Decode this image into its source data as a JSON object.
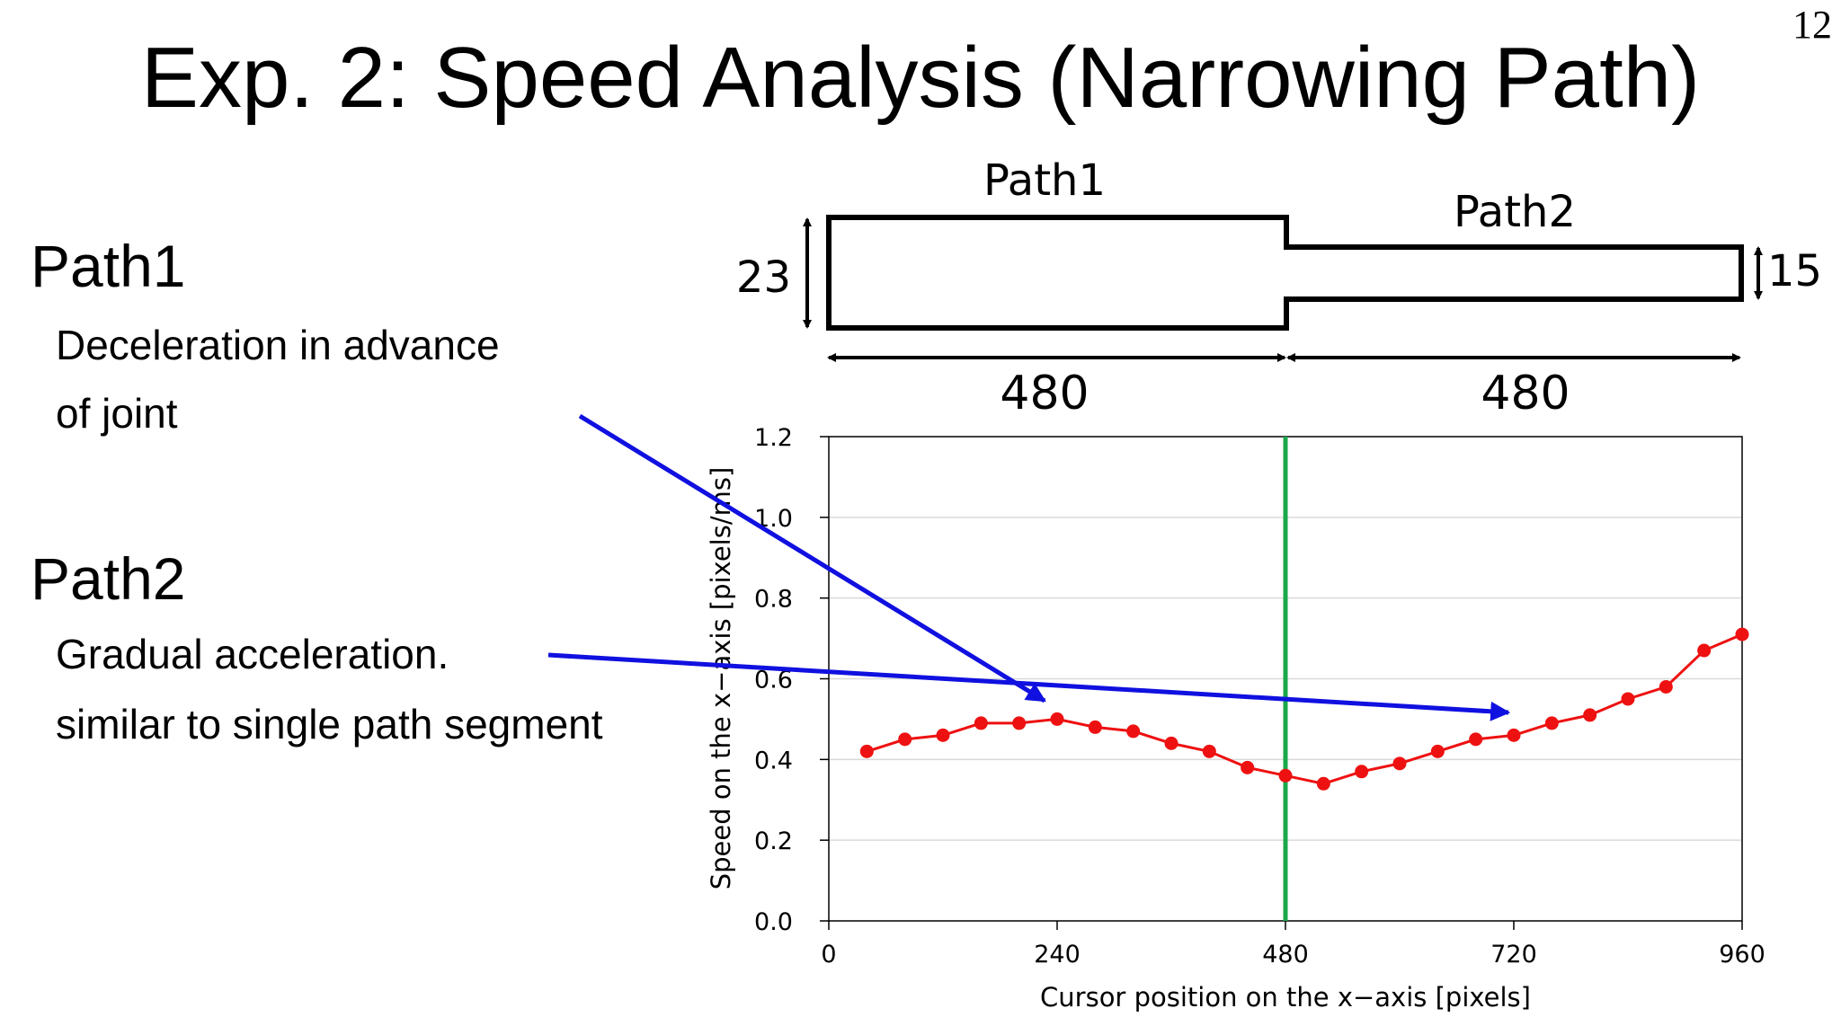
{
  "slide": {
    "number": "12",
    "title": "Exp. 2: Speed Analysis (Narrowing Path)"
  },
  "left_text": {
    "path1": {
      "heading": "Path1",
      "lines": [
        "Deceleration in advance",
        "of joint"
      ]
    },
    "path2": {
      "heading": "Path2",
      "lines": [
        "Gradual acceleration.",
        "similar to single path segment"
      ]
    }
  },
  "path_diagram": {
    "path1_label": "Path1",
    "path2_label": "Path2",
    "path1_width": "23",
    "path2_width": "15",
    "path1_length": "480",
    "path2_length": "480"
  },
  "annotations": {
    "arrow_color": "#1010e0"
  },
  "chart_data": {
    "type": "line",
    "xlabel": "Cursor position on the x−axis [pixels]",
    "ylabel": "Speed on the x−axis [pixels/ms]",
    "xlim": [
      0,
      960
    ],
    "ylim": [
      0,
      1.2
    ],
    "x_ticks": [
      0,
      240,
      480,
      720,
      960
    ],
    "y_ticks": [
      "0.0",
      "0.2",
      "0.4",
      "0.6",
      "0.8",
      "1.0",
      "1.2"
    ],
    "grid": "horizontal",
    "joint_marker": {
      "x": 480,
      "color": "#1aa84a"
    },
    "series": [
      {
        "color": "#ee1111",
        "x": [
          40,
          80,
          120,
          160,
          200,
          240,
          280,
          320,
          360,
          400,
          440,
          480,
          520,
          560,
          600,
          640,
          680,
          720,
          760,
          800,
          840,
          880,
          920,
          960
        ],
        "values": [
          0.42,
          0.45,
          0.46,
          0.49,
          0.49,
          0.5,
          0.48,
          0.47,
          0.44,
          0.42,
          0.38,
          0.36,
          0.34,
          0.37,
          0.39,
          0.42,
          0.45,
          0.46,
          0.49,
          0.51,
          0.55,
          0.58,
          0.67,
          0.71
        ]
      }
    ]
  }
}
